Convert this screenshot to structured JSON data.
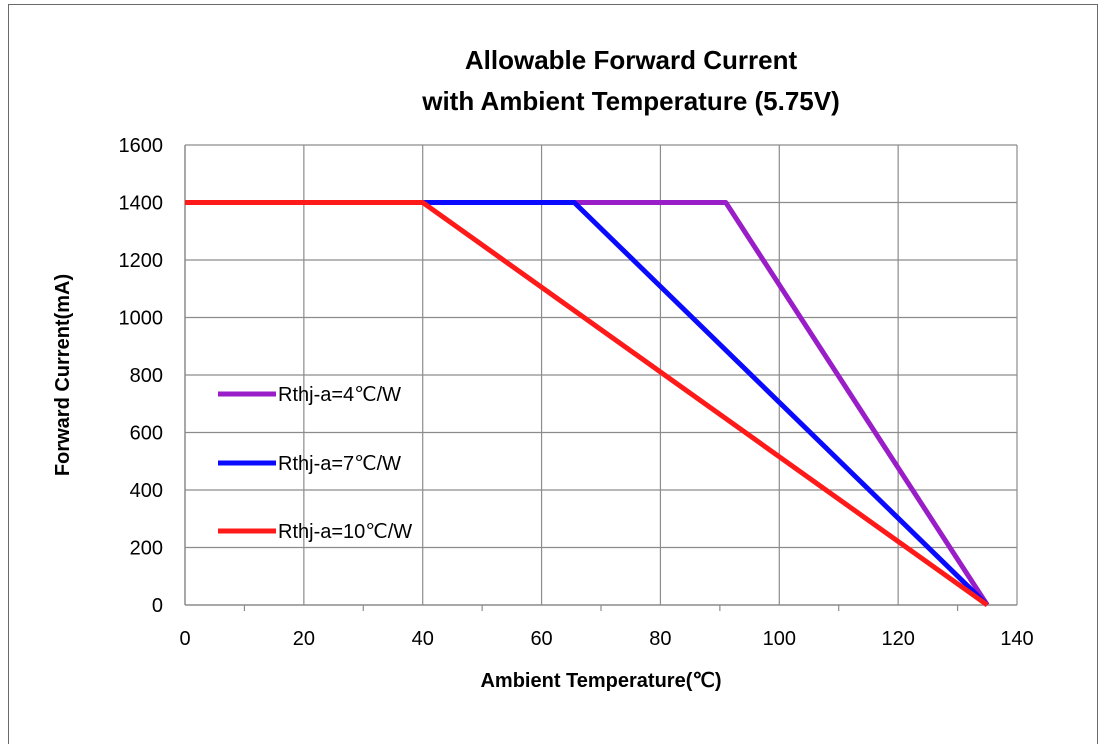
{
  "chart_data": {
    "type": "line",
    "title_line1": "Allowable Forward Current",
    "title_line2": "with Ambient Temperature (5.75V)",
    "xlabel": "Ambient Temperature(℃)",
    "ylabel": "Forward Current(mA)",
    "xlim": [
      0,
      140
    ],
    "ylim": [
      0,
      1600
    ],
    "x_ticks": [
      "0",
      "20",
      "40",
      "60",
      "80",
      "100",
      "120",
      "140"
    ],
    "y_ticks": [
      "0",
      "200",
      "400",
      "600",
      "800",
      "1000",
      "1200",
      "1400",
      "1600"
    ],
    "grid": true,
    "legend_position": "left",
    "series": [
      {
        "name": "Rthj-a=4℃/W",
        "color": "#9a1ec8",
        "x": [
          0,
          91,
          135
        ],
        "y": [
          1400,
          1400,
          0
        ]
      },
      {
        "name": "Rthj-a=7℃/W",
        "color": "#0a0aff",
        "x": [
          0,
          65.5,
          135
        ],
        "y": [
          1400,
          1400,
          0
        ]
      },
      {
        "name": "Rthj-a=10℃/W",
        "color": "#ff1a1a",
        "x": [
          0,
          40,
          135
        ],
        "y": [
          1400,
          1400,
          0
        ]
      }
    ]
  }
}
